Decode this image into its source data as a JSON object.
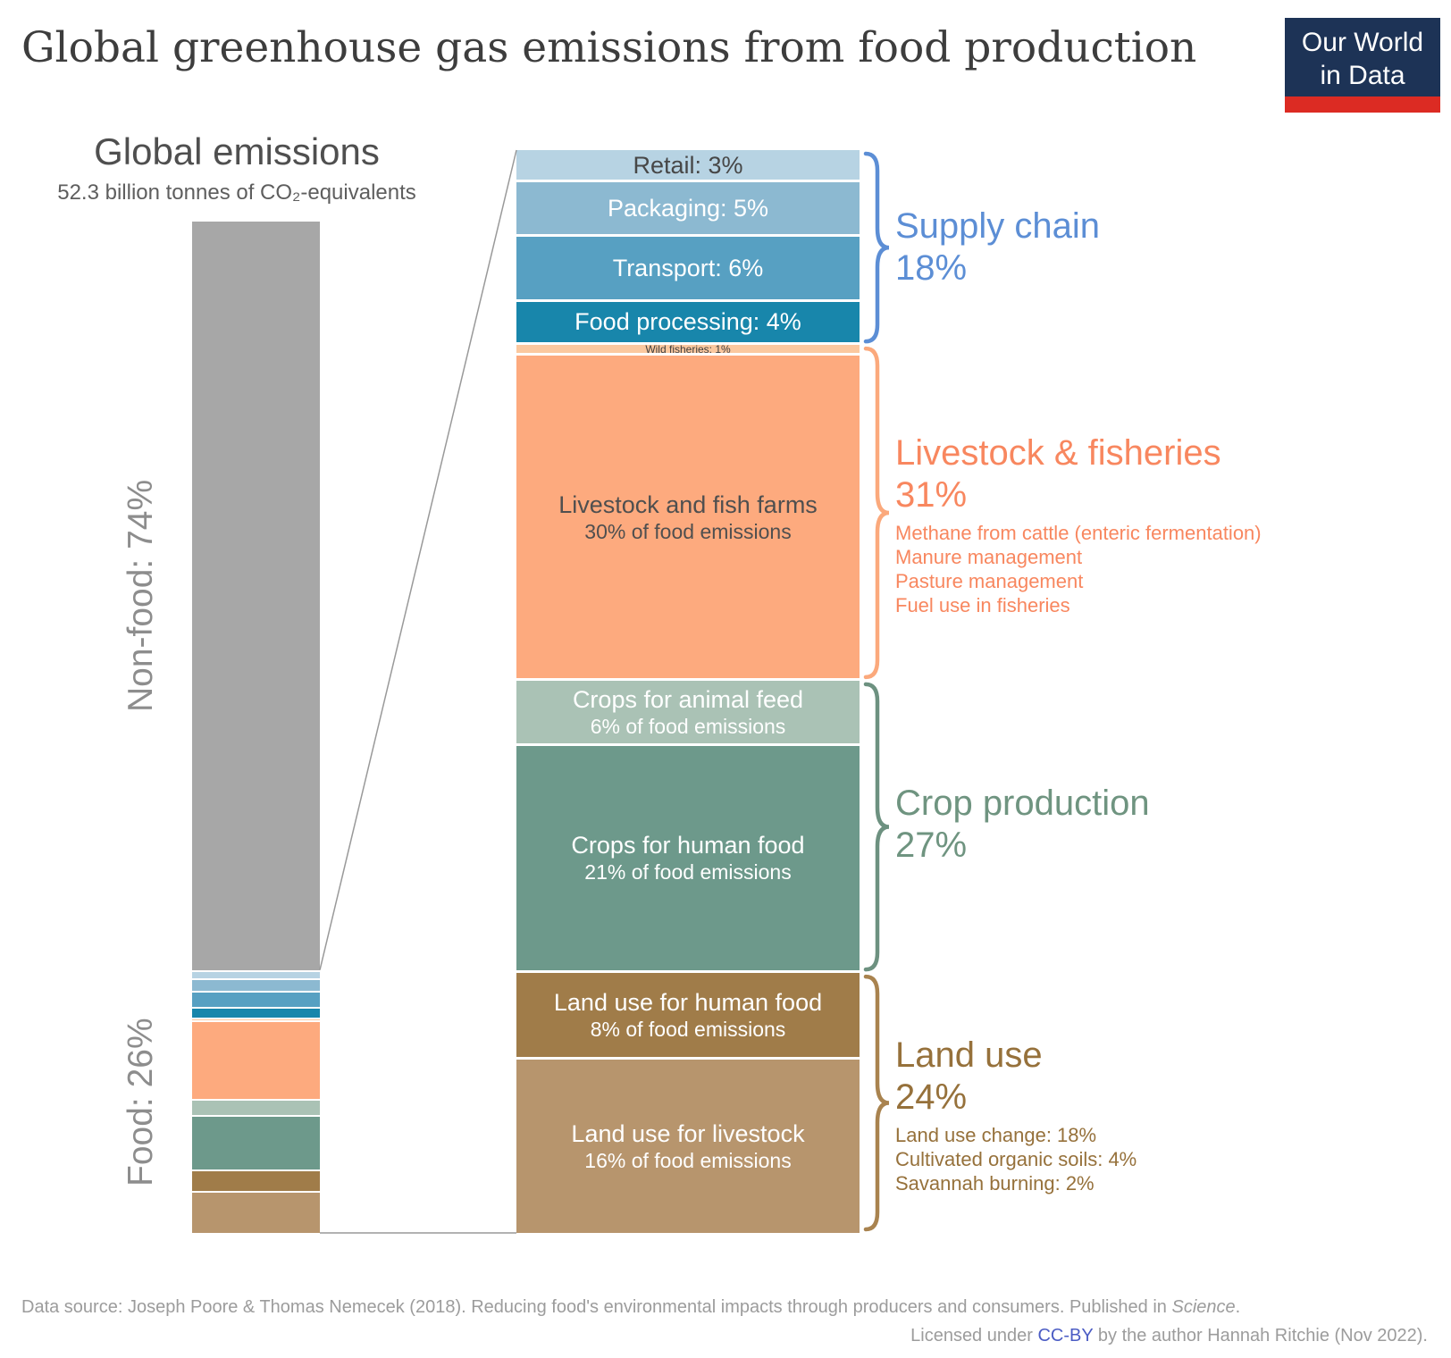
{
  "header": {
    "title": "Global greenhouse gas emissions from food production",
    "logo_line1": "Our World",
    "logo_line2": "in Data"
  },
  "left": {
    "heading": "Global emissions",
    "subheading": "52.3 billion tonnes of CO₂-equivalents",
    "non_food_label": "Non-food: 74%",
    "food_label": "Food: 26%"
  },
  "chart_data": {
    "type": "bar",
    "title": "Global greenhouse gas emissions from food production",
    "total": "52.3 billion tonnes of CO₂-equivalents",
    "global_bar": [
      {
        "label": "Non-food",
        "pct_of_global": 74,
        "color": "#a7a7a7"
      },
      {
        "label": "Food",
        "pct_of_global": 26
      }
    ],
    "food_segments": [
      {
        "name": "Retail",
        "pct_of_food": 3,
        "line1": "Retail: 3%",
        "line2": "",
        "color": "#b7d3e3",
        "text_color": "#474747",
        "group": 0,
        "tiny": false
      },
      {
        "name": "Packaging",
        "pct_of_food": 5,
        "line1": "Packaging: 5%",
        "line2": "",
        "color": "#8cb9d1",
        "text_color": "#ffffff",
        "group": 0,
        "tiny": false
      },
      {
        "name": "Transport",
        "pct_of_food": 6,
        "line1": "Transport: 6%",
        "line2": "",
        "color": "#57a0c2",
        "text_color": "#ffffff",
        "group": 0,
        "tiny": false
      },
      {
        "name": "Food processing",
        "pct_of_food": 4,
        "line1": "Food processing: 4%",
        "line2": "",
        "color": "#1886ab",
        "text_color": "#ffffff",
        "group": 0,
        "tiny": false
      },
      {
        "name": "Wild fisheries",
        "pct_of_food": 1,
        "line1": "Wild fisheries: 1%",
        "line2": "",
        "color": "#fbc89f",
        "text_color": "#3e3e3e",
        "group": 1,
        "tiny": true
      },
      {
        "name": "Livestock and fish farms",
        "pct_of_food": 30,
        "line1": "Livestock and fish farms",
        "line2": "30% of food emissions",
        "color": "#fdaa7e",
        "text_color": "#4f4f4f",
        "group": 1,
        "tiny": false
      },
      {
        "name": "Crops for animal feed",
        "pct_of_food": 6,
        "line1": "Crops for animal feed",
        "line2": "6% of food emissions",
        "color": "#aac2b5",
        "text_color": "#ffffff",
        "group": 2,
        "tiny": false
      },
      {
        "name": "Crops for human food",
        "pct_of_food": 21,
        "line1": "Crops for human food",
        "line2": "21% of food emissions",
        "color": "#6d998b",
        "text_color": "#ffffff",
        "group": 2,
        "tiny": false
      },
      {
        "name": "Land use for human food",
        "pct_of_food": 8,
        "line1": "Land use for human food",
        "line2": "8% of food emissions",
        "color": "#a07c49",
        "text_color": "#ffffff",
        "group": 3,
        "tiny": false
      },
      {
        "name": "Land use for livestock",
        "pct_of_food": 16,
        "line1": "Land use for livestock",
        "line2": "16% of food emissions",
        "color": "#b7956d",
        "text_color": "#ffffff",
        "group": 3,
        "tiny": false
      }
    ],
    "groups": [
      {
        "label": "Supply chain",
        "pct": 18,
        "text_color": "#5c8ed5",
        "brace_color": "#5c8ed5",
        "sublabels": []
      },
      {
        "label": "Livestock & fisheries",
        "pct": 31,
        "text_color": "#f8875f",
        "brace_color": "#fba97c",
        "sublabels": [
          "Methane from cattle (enteric fermentation)",
          "Manure management",
          "Pasture management",
          "Fuel use in fisheries"
        ]
      },
      {
        "label": "Crop production",
        "pct": 27,
        "text_color": "#6f9480",
        "brace_color": "#6d9180",
        "sublabels": []
      },
      {
        "label": "Land use",
        "pct": 24,
        "text_color": "#96713b",
        "brace_color": "#a9834f",
        "sublabels": [
          "Land use change: 18%",
          "Cultivated organic soils: 4%",
          "Savannah burning: 2%"
        ]
      }
    ],
    "layout_hint": {
      "orientation": "vertical-stacked",
      "legend": "none",
      "grid": false
    }
  },
  "footer": {
    "src_prefix": "Data source: Joseph Poore & Thomas Nemecek (2018). Reducing food's environmental impacts through producers and consumers. Published in ",
    "src_italic": "Science",
    "src_suffix": ".",
    "lic_prefix": "Licensed under ",
    "lic_link": "CC-BY",
    "lic_suffix": " by the author Hannah Ritchie (Nov 2022)."
  }
}
